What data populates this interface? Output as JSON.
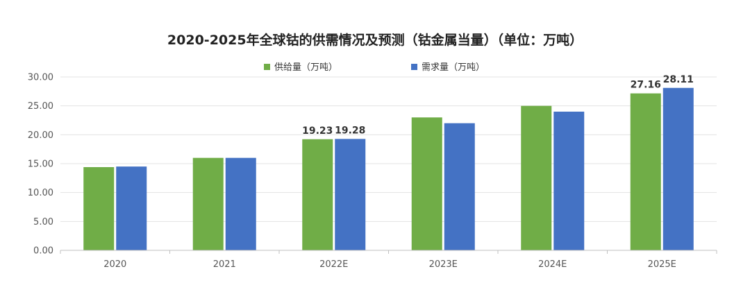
{
  "chart_data": {
    "type": "bar",
    "title": "2020-2025年全球钴的供需情况及预测（钴金属当量）（单位：万吨）",
    "categories": [
      "2020",
      "2021",
      "2022E",
      "2023E",
      "2024E",
      "2025E"
    ],
    "series": [
      {
        "name": "供给量（万吨）",
        "color": "#70ad47",
        "values": [
          14.4,
          16.0,
          19.23,
          23.0,
          25.0,
          27.16
        ],
        "labels": [
          "",
          "",
          "19.23",
          "",
          "",
          "27.16"
        ]
      },
      {
        "name": "需求量（万吨）",
        "color": "#4472c4",
        "values": [
          14.5,
          16.0,
          19.28,
          22.0,
          24.0,
          28.11
        ],
        "labels": [
          "",
          "",
          "19.28",
          "",
          "",
          "28.11"
        ]
      }
    ],
    "ylim": [
      0,
      30
    ],
    "yticks": [
      "0.00",
      "5.00",
      "10.00",
      "15.00",
      "20.00",
      "25.00",
      "30.00"
    ],
    "grid": true,
    "legend_position": "top-center"
  }
}
